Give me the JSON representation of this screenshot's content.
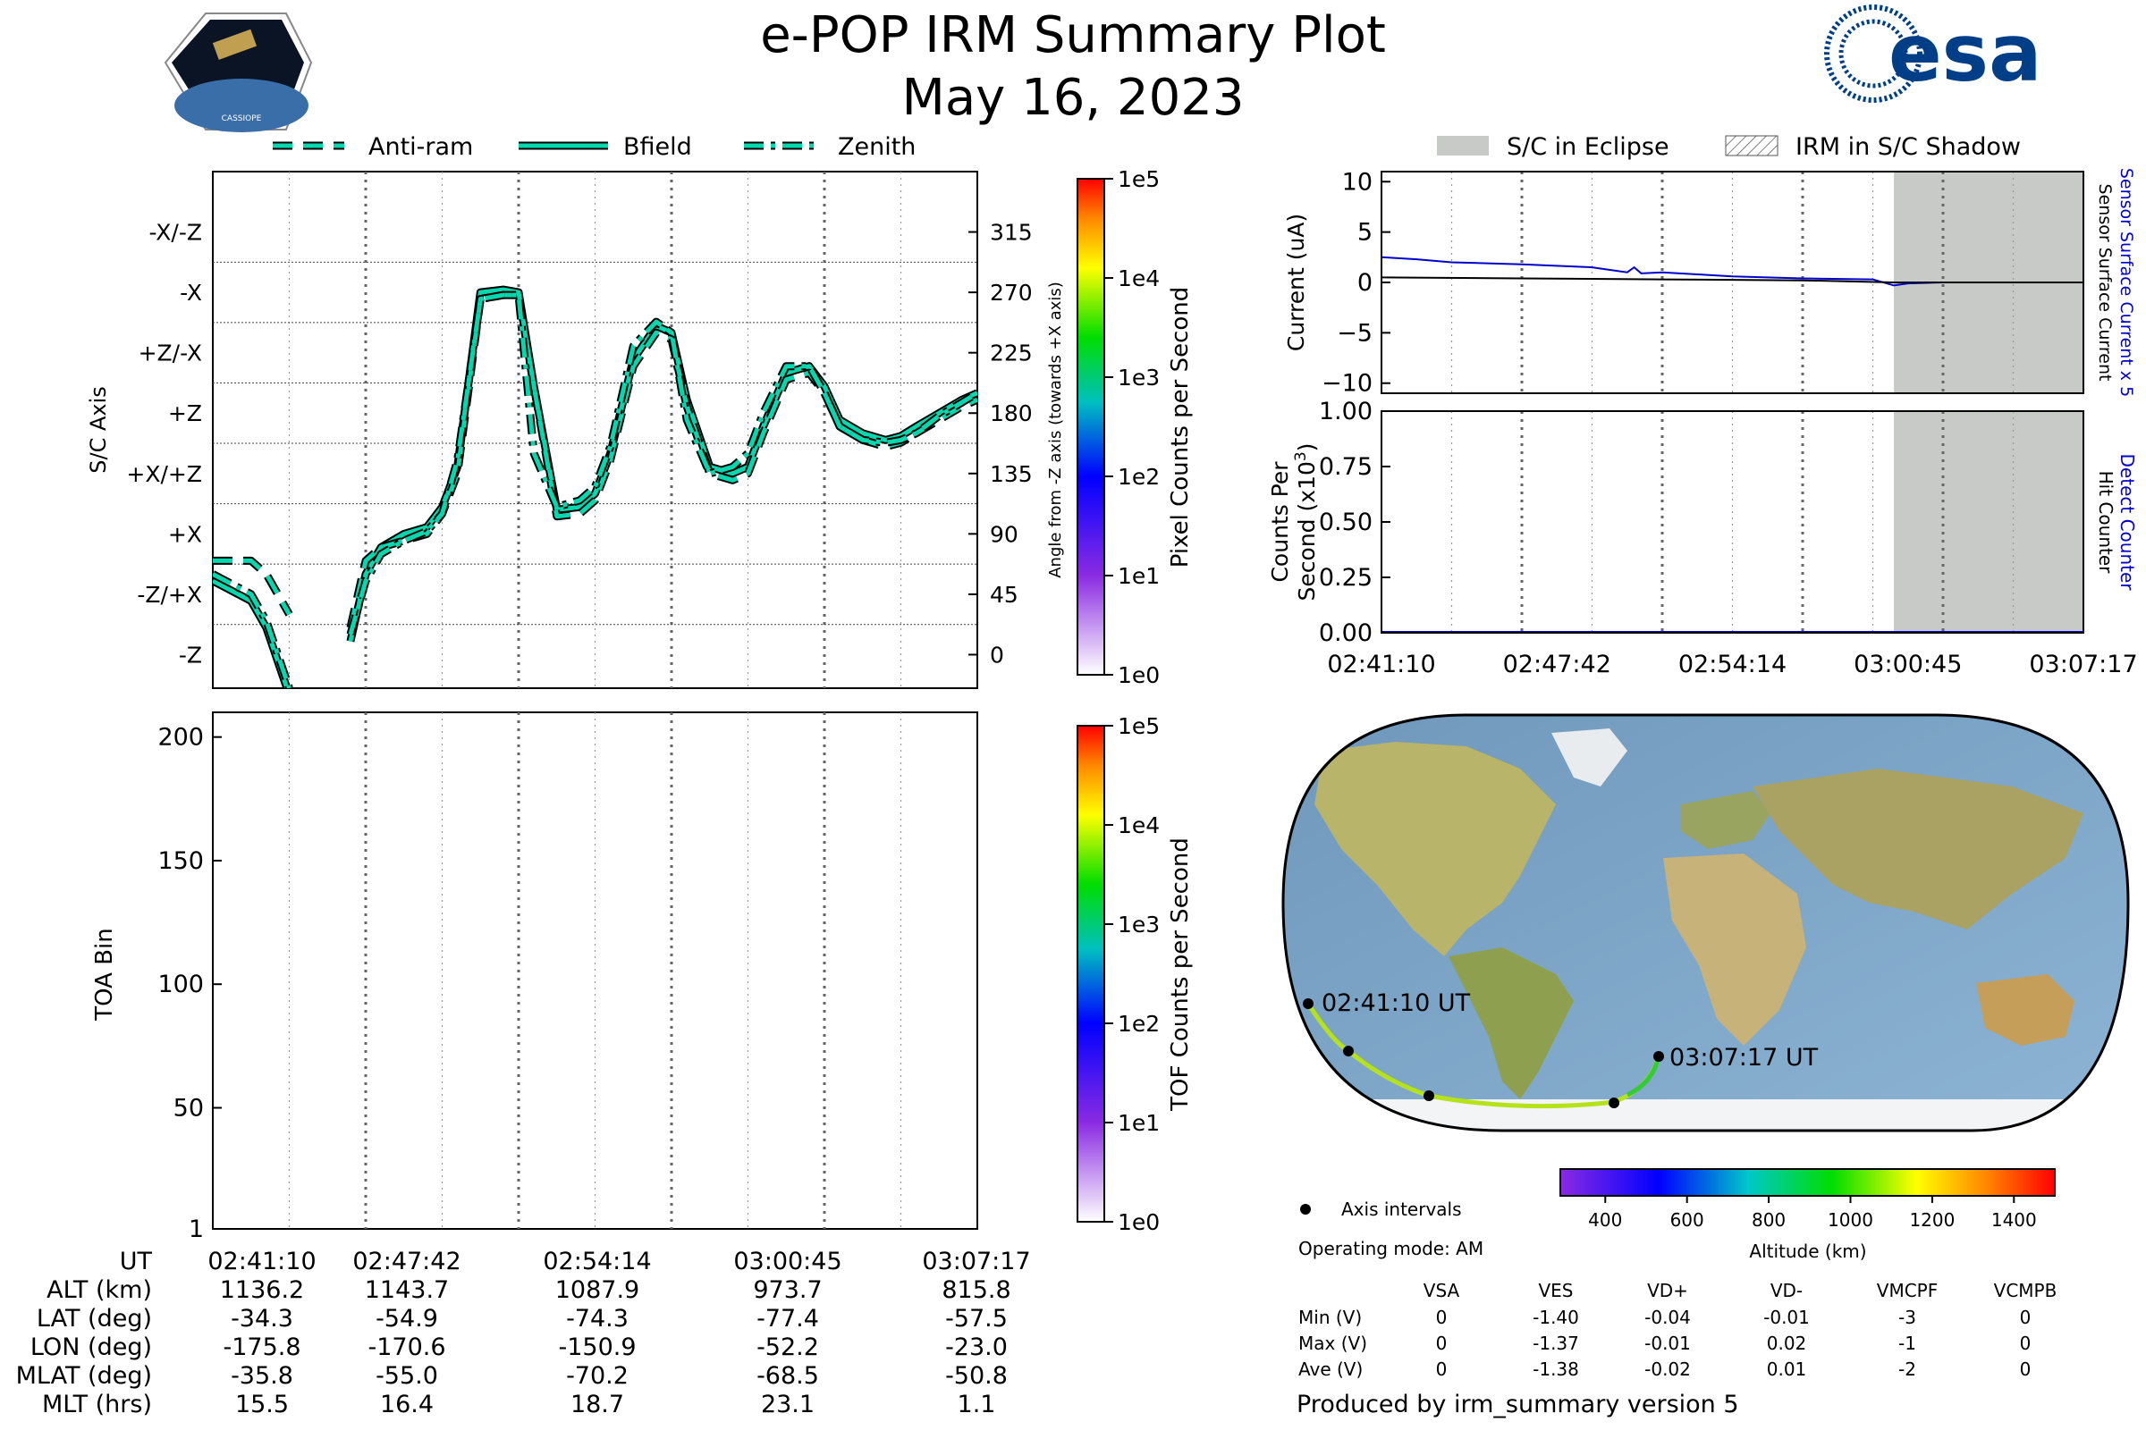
{
  "header": {
    "title": "e-POP IRM Summary Plot",
    "date": "May 16, 2023",
    "mission_logo_text": "CASSIOPE",
    "agency_logo_text": "esa"
  },
  "legend_top_left": {
    "anti_ram": "Anti-ram",
    "bfield": "Bfield",
    "zenith": "Zenith"
  },
  "legend_top_right": {
    "eclipse": "S/C in Eclipse",
    "shadow": "IRM in S/C Shadow"
  },
  "time_ticks": [
    "02:41:10",
    "02:47:42",
    "02:54:14",
    "03:00:45",
    "03:07:17"
  ],
  "stats_table": {
    "rows": [
      {
        "label": "UT",
        "values": [
          "02:41:10",
          "02:47:42",
          "02:54:14",
          "03:00:45",
          "03:07:17"
        ]
      },
      {
        "label": "ALT (km)",
        "values": [
          "1136.2",
          "1143.7",
          "1087.9",
          "973.7",
          "815.8"
        ]
      },
      {
        "label": "LAT (deg)",
        "values": [
          "-34.3",
          "-54.9",
          "-74.3",
          "-77.4",
          "-57.5"
        ]
      },
      {
        "label": "LON (deg)",
        "values": [
          "-175.8",
          "-170.6",
          "-150.9",
          "-52.2",
          "-23.0"
        ]
      },
      {
        "label": "MLAT (deg)",
        "values": [
          "-35.8",
          "-55.0",
          "-70.2",
          "-68.5",
          "-50.8"
        ]
      },
      {
        "label": "MLT (hrs)",
        "values": [
          "15.5",
          "16.4",
          "18.7",
          "23.1",
          "1.1"
        ]
      }
    ]
  },
  "map": {
    "start_label": "02:41:10 UT",
    "end_label": "03:07:17 UT",
    "axis_intervals_label": "Axis intervals",
    "operating_mode": "Operating mode: AM",
    "altitude_colorbar": {
      "label": "Altitude (km)",
      "ticks": [
        "400",
        "600",
        "800",
        "1000",
        "1200",
        "1400"
      ]
    }
  },
  "voltage_table": {
    "columns": [
      "VSA",
      "VES",
      "VD+",
      "VD-",
      "VMCPF",
      "VCMPB"
    ],
    "rows": [
      {
        "label": "Min (V)",
        "values": [
          "0",
          "-1.40",
          "-0.04",
          "-0.01",
          "-3",
          "0"
        ]
      },
      {
        "label": "Max (V)",
        "values": [
          "0",
          "-1.37",
          "-0.01",
          "0.02",
          "-1",
          "0"
        ]
      },
      {
        "label": "Ave (V)",
        "values": [
          "0",
          "-1.38",
          "-0.02",
          "0.01",
          "-2",
          "0"
        ]
      }
    ]
  },
  "footer": "Produced by irm_summary version 5",
  "colors": {
    "curve": "#00d9b0",
    "curve_edge": "#000000",
    "eclipse": "#c8cac8",
    "sensor_current": "#0000cc",
    "hit_counter": "#0000cc"
  },
  "chart_data": [
    {
      "type": "line",
      "name": "attitude",
      "ylabel": "S/C Axis",
      "ytick_labels": [
        "-X/-Z",
        "-X",
        "+Z/-X",
        "+Z",
        "+X/+Z",
        "+X",
        "-Z/+X",
        "-Z"
      ],
      "y2label": "Angle from -Z axis (towards +X axis)",
      "y2ticks": [
        "315",
        "270",
        "225",
        "180",
        "135",
        "90",
        "45",
        "0"
      ],
      "ylim": [
        -25,
        360
      ],
      "x": [
        0.0,
        0.05,
        0.07,
        0.1,
        0.12,
        0.15,
        0.18,
        0.2,
        0.22,
        0.25,
        0.28,
        0.3,
        0.32,
        0.35,
        0.38,
        0.4,
        0.42,
        0.45,
        0.48,
        0.5,
        0.52,
        0.55,
        0.58,
        0.6,
        0.62,
        0.65,
        0.68,
        0.7,
        0.72,
        0.75,
        0.78,
        0.8,
        0.82,
        0.85,
        0.88,
        0.9,
        0.92,
        0.95,
        0.98,
        1.0
      ],
      "series": [
        {
          "name": "Bfield",
          "values": [
            55,
            40,
            20,
            -30,
            null,
            null,
            10,
            60,
            80,
            90,
            95,
            110,
            140,
            270,
            272,
            270,
            200,
            108,
            110,
            120,
            150,
            220,
            245,
            240,
            190,
            140,
            135,
            140,
            170,
            210,
            215,
            200,
            175,
            165,
            160,
            163,
            170,
            180,
            190,
            195
          ]
        },
        {
          "name": "Anti-ram",
          "values": [
            70,
            70,
            60,
            30,
            null,
            null,
            20,
            70,
            80,
            85,
            90,
            105,
            135,
            265,
            268,
            268,
            200,
            103,
            105,
            115,
            145,
            215,
            240,
            235,
            185,
            135,
            130,
            135,
            165,
            205,
            210,
            195,
            170,
            160,
            155,
            158,
            165,
            175,
            185,
            190
          ]
        },
        {
          "name": "Zenith",
          "values": [
            60,
            45,
            25,
            -25,
            null,
            null,
            15,
            55,
            75,
            85,
            92,
            105,
            145,
            265,
            268,
            268,
            150,
            110,
            115,
            125,
            155,
            230,
            248,
            240,
            175,
            135,
            140,
            150,
            180,
            215,
            215,
            195,
            170,
            160,
            158,
            160,
            165,
            178,
            188,
            195
          ]
        }
      ]
    },
    {
      "type": "heatmap",
      "name": "pixel_counts",
      "colorbar_label": "Pixel Counts per Second",
      "colorbar_ticks": [
        "1e0",
        "1e1",
        "1e2",
        "1e3",
        "1e4",
        "1e5"
      ]
    },
    {
      "type": "heatmap",
      "name": "toa",
      "ylabel": "TOA Bin",
      "yticks": [
        "1",
        "50",
        "100",
        "150",
        "200"
      ],
      "ylim": [
        1,
        210
      ],
      "colorbar_label": "TOF Counts per Second",
      "colorbar_ticks": [
        "1e0",
        "1e1",
        "1e2",
        "1e3",
        "1e4",
        "1e5"
      ]
    },
    {
      "type": "line",
      "name": "current",
      "ylabel": "Current (uA)",
      "yticks": [
        "10",
        "5",
        "0",
        "−5",
        "−10"
      ],
      "ylim": [
        -11,
        11
      ],
      "right_labels": [
        "Sensor Surface Current x 5",
        "Sensor Surface Current"
      ],
      "eclipse_start_fraction": 0.73,
      "series": [
        {
          "name": "Sensor Surface Current x 5",
          "x": [
            0,
            0.05,
            0.1,
            0.2,
            0.3,
            0.35,
            0.36,
            0.37,
            0.4,
            0.45,
            0.5,
            0.6,
            0.7,
            0.73,
            0.75,
            0.8,
            1.0
          ],
          "values": [
            2.5,
            2.3,
            2.0,
            1.8,
            1.5,
            1.0,
            1.5,
            0.9,
            1.0,
            0.8,
            0.6,
            0.4,
            0.3,
            -0.3,
            -0.1,
            0.0,
            0.0
          ]
        },
        {
          "name": "Sensor Surface Current",
          "x": [
            0,
            0.2,
            0.4,
            0.6,
            0.73,
            0.8,
            1.0
          ],
          "values": [
            0.5,
            0.4,
            0.3,
            0.2,
            0.0,
            0.0,
            0.0
          ]
        }
      ]
    },
    {
      "type": "line",
      "name": "counts",
      "ylabel": "Counts Per Second (x10³)",
      "yticks": [
        "1.00",
        "0.75",
        "0.50",
        "0.25",
        "0.00"
      ],
      "ylim": [
        0,
        1
      ],
      "right_labels": [
        "Detect Counter",
        "Hit Counter"
      ],
      "eclipse_start_fraction": 0.73,
      "series": [
        {
          "name": "Detect Counter",
          "x": [
            0,
            1
          ],
          "values": [
            0,
            0
          ]
        }
      ]
    }
  ]
}
